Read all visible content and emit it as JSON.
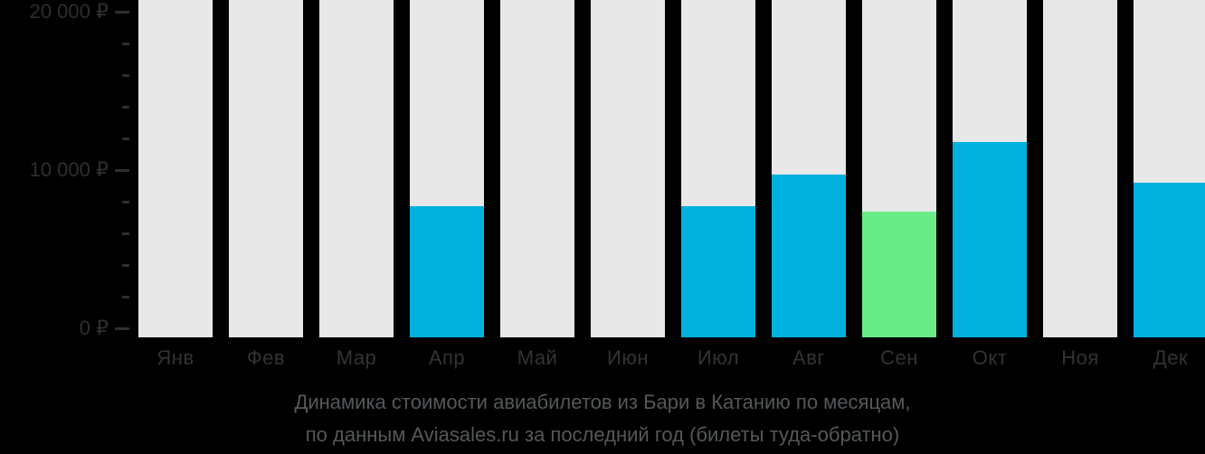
{
  "chart_data": {
    "type": "bar",
    "title_line1": "Динамика стоимости авиабилетов из Бари в Катанию по месяцам,",
    "title_line2": "по данным Aviasales.ru за последний год (билеты туда-обратно)",
    "categories": [
      "Янв",
      "Фев",
      "Мар",
      "Апр",
      "Май",
      "Июн",
      "Июл",
      "Авг",
      "Сен",
      "Окт",
      "Ноя",
      "Дек"
    ],
    "values": [
      null,
      null,
      null,
      7700,
      null,
      null,
      7700,
      9700,
      7400,
      11800,
      null,
      9200
    ],
    "currency": "₽",
    "ylabel": "",
    "xlabel": "",
    "ylim": [
      0,
      20000
    ],
    "grid": false,
    "legend": "none",
    "y_major_ticks": [
      {
        "value": 20000,
        "label": "20 000 ₽"
      },
      {
        "value": 10000,
        "label": "10 000 ₽"
      },
      {
        "value": 0,
        "label": "0 ₽"
      }
    ],
    "y_minor_tick_values": [
      18000,
      16000,
      14000,
      12000,
      8000,
      6000,
      4000,
      2000
    ],
    "highlight": {
      "category": "Сен",
      "index": 8
    },
    "colors": {
      "bar": "#00b1de",
      "bar_highlight": "#69eb87",
      "bar_track": "#e8e8e8",
      "background": "#000000",
      "axis_text": "#2e2e2e",
      "caption_text": "#54585b"
    }
  }
}
